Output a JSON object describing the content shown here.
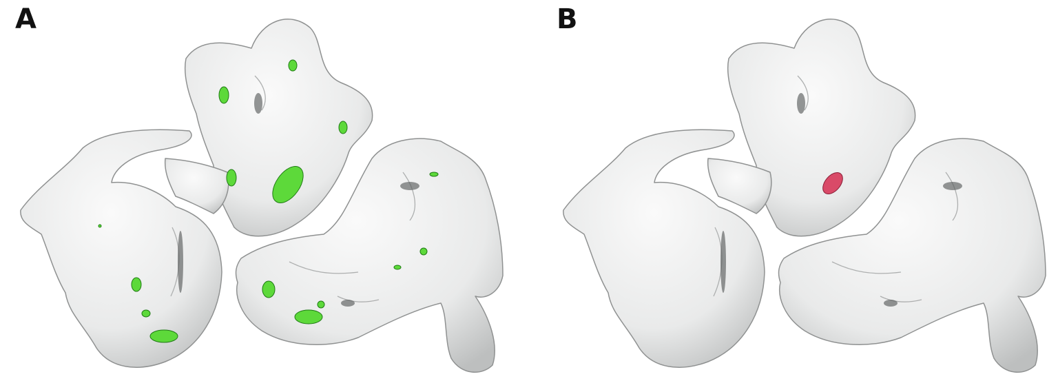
{
  "figure": {
    "panels": [
      {
        "id": "A",
        "label": "A",
        "marker_color": "#5dd93a",
        "marker_dark": "#1f7a14"
      },
      {
        "id": "B",
        "label": "B",
        "marker_color": "#d94a68",
        "marker_dark": "#8a1f38"
      }
    ],
    "surface_color": "#eceded",
    "surface_stroke": "#8f9191"
  }
}
